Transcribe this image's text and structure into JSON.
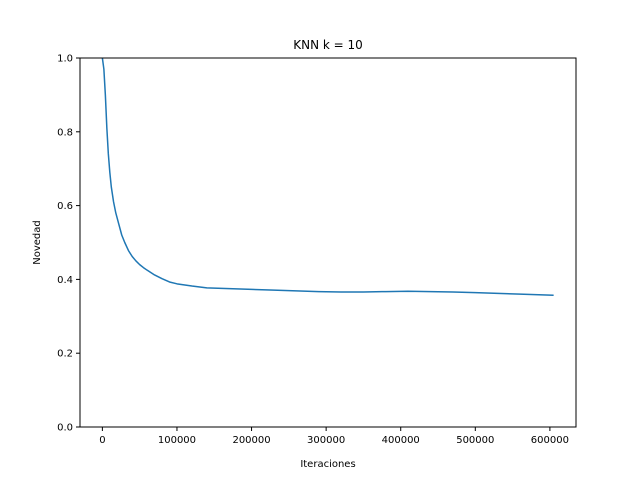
{
  "chart_data": {
    "type": "line",
    "title": "KNN k = 10",
    "xlabel": "Iteraciones",
    "ylabel": "Novedad",
    "xlim": [
      -30000,
      635000
    ],
    "ylim": [
      0.0,
      1.0
    ],
    "xticks": [
      0,
      100000,
      200000,
      300000,
      400000,
      500000,
      600000
    ],
    "xtick_labels": [
      "0",
      "100000",
      "200000",
      "300000",
      "400000",
      "500000",
      "600000"
    ],
    "yticks": [
      0.0,
      0.2,
      0.4,
      0.6,
      0.8,
      1.0
    ],
    "ytick_labels": [
      "0.0",
      "0.2",
      "0.4",
      "0.6",
      "0.8",
      "1.0"
    ],
    "grid": false,
    "legend": "none",
    "series": [
      {
        "color": "#1f77b4",
        "x": [
          0,
          2000,
          4000,
          6000,
          8000,
          10000,
          12000,
          15000,
          18000,
          22000,
          26000,
          30000,
          35000,
          40000,
          45000,
          50000,
          55000,
          60000,
          70000,
          80000,
          90000,
          100000,
          120000,
          140000,
          170000,
          200000,
          230000,
          260000,
          290000,
          320000,
          350000,
          380000,
          410000,
          440000,
          470000,
          500000,
          530000,
          560000,
          590000,
          605000
        ],
        "y": [
          1.0,
          0.97,
          0.9,
          0.81,
          0.74,
          0.69,
          0.65,
          0.61,
          0.58,
          0.55,
          0.52,
          0.5,
          0.478,
          0.462,
          0.45,
          0.44,
          0.432,
          0.425,
          0.412,
          0.402,
          0.393,
          0.388,
          0.382,
          0.377,
          0.375,
          0.373,
          0.371,
          0.369,
          0.367,
          0.366,
          0.366,
          0.367,
          0.368,
          0.367,
          0.366,
          0.364,
          0.362,
          0.36,
          0.358,
          0.357
        ]
      }
    ]
  }
}
